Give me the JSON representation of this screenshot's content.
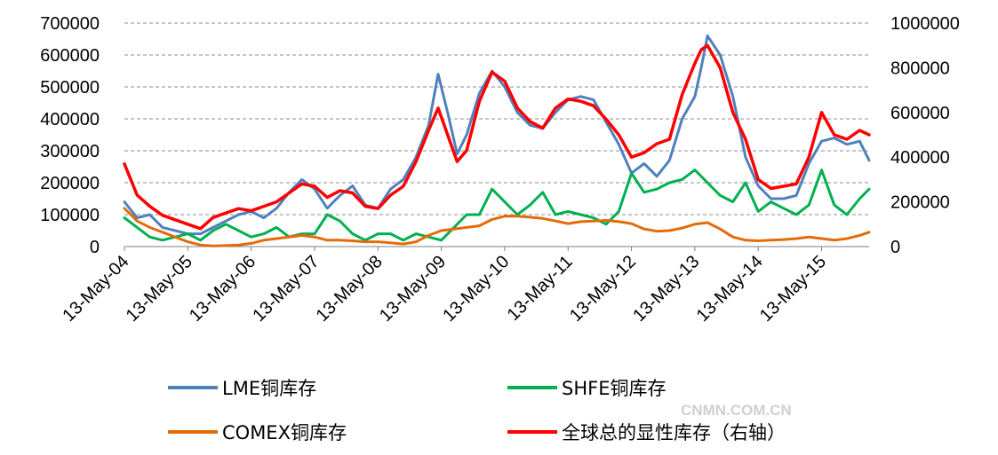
{
  "watermark": "CNMN.COM.CN",
  "chart_data": {
    "type": "line",
    "title": "",
    "y_left": {
      "ylim": [
        0,
        700000
      ],
      "ticks": [
        "0",
        "100000",
        "200000",
        "300000",
        "400000",
        "500000",
        "600000",
        "700000"
      ]
    },
    "y_right": {
      "ylim": [
        0,
        1000000
      ],
      "ticks": [
        "0",
        "200000",
        "400000",
        "600000",
        "800000",
        "1000000"
      ]
    },
    "x_range": [
      2004.0,
      2015.75
    ],
    "x_ticks": [
      "13-May-04",
      "13-May-05",
      "13-May-06",
      "13-May-07",
      "13-May-08",
      "13-May-09",
      "13-May-10",
      "13-May-11",
      "13-May-12",
      "13-May-13",
      "13-May-14",
      "13-May-15"
    ],
    "grid": "horizontal dashed",
    "legend_position": "bottom",
    "series": [
      {
        "name": "LME铜库存",
        "color": "#4f81bd",
        "axis": "left",
        "x": [
          2004.0,
          2004.2,
          2004.4,
          2004.6,
          2004.8,
          2005.0,
          2005.2,
          2005.4,
          2005.6,
          2005.8,
          2006.0,
          2006.2,
          2006.4,
          2006.6,
          2006.8,
          2007.0,
          2007.2,
          2007.4,
          2007.6,
          2007.8,
          2008.0,
          2008.2,
          2008.4,
          2008.6,
          2008.8,
          2008.95,
          2009.1,
          2009.25,
          2009.4,
          2009.6,
          2009.8,
          2010.0,
          2010.2,
          2010.4,
          2010.6,
          2010.8,
          2011.0,
          2011.2,
          2011.4,
          2011.6,
          2011.8,
          2012.0,
          2012.2,
          2012.4,
          2012.6,
          2012.8,
          2013.0,
          2013.1,
          2013.2,
          2013.4,
          2013.6,
          2013.8,
          2014.0,
          2014.2,
          2014.4,
          2014.6,
          2014.8,
          2015.0,
          2015.2,
          2015.4,
          2015.6,
          2015.75
        ],
        "values": [
          140000,
          90000,
          100000,
          60000,
          50000,
          40000,
          40000,
          60000,
          80000,
          100000,
          110000,
          90000,
          120000,
          170000,
          210000,
          180000,
          120000,
          160000,
          190000,
          130000,
          120000,
          180000,
          210000,
          280000,
          380000,
          540000,
          420000,
          290000,
          350000,
          480000,
          550000,
          500000,
          420000,
          380000,
          370000,
          420000,
          460000,
          470000,
          460000,
          390000,
          320000,
          230000,
          260000,
          220000,
          270000,
          400000,
          470000,
          560000,
          660000,
          600000,
          470000,
          280000,
          190000,
          150000,
          150000,
          160000,
          260000,
          330000,
          340000,
          320000,
          330000,
          270000
        ]
      },
      {
        "name": "SHFE铜库存",
        "color": "#00b050",
        "axis": "left",
        "x": [
          2004.0,
          2004.2,
          2004.4,
          2004.6,
          2004.8,
          2005.0,
          2005.2,
          2005.4,
          2005.6,
          2005.8,
          2006.0,
          2006.2,
          2006.4,
          2006.6,
          2006.8,
          2007.0,
          2007.2,
          2007.4,
          2007.6,
          2007.8,
          2008.0,
          2008.2,
          2008.4,
          2008.6,
          2008.8,
          2009.0,
          2009.2,
          2009.4,
          2009.6,
          2009.8,
          2010.0,
          2010.2,
          2010.4,
          2010.6,
          2010.8,
          2011.0,
          2011.2,
          2011.4,
          2011.6,
          2011.8,
          2012.0,
          2012.2,
          2012.4,
          2012.6,
          2012.8,
          2013.0,
          2013.2,
          2013.4,
          2013.6,
          2013.8,
          2014.0,
          2014.2,
          2014.4,
          2014.6,
          2014.8,
          2015.0,
          2015.2,
          2015.4,
          2015.6,
          2015.75
        ],
        "values": [
          90000,
          60000,
          30000,
          20000,
          30000,
          40000,
          20000,
          50000,
          70000,
          50000,
          30000,
          40000,
          60000,
          30000,
          40000,
          40000,
          100000,
          80000,
          40000,
          20000,
          40000,
          40000,
          20000,
          40000,
          30000,
          20000,
          60000,
          100000,
          100000,
          180000,
          140000,
          100000,
          130000,
          170000,
          100000,
          110000,
          100000,
          90000,
          70000,
          110000,
          230000,
          170000,
          180000,
          200000,
          210000,
          240000,
          200000,
          160000,
          140000,
          200000,
          110000,
          140000,
          120000,
          100000,
          130000,
          240000,
          130000,
          100000,
          150000,
          180000
        ]
      },
      {
        "name": "COMEX铜库存",
        "color": "#e36c09",
        "axis": "left",
        "x": [
          2004.0,
          2004.2,
          2004.4,
          2004.6,
          2004.8,
          2005.0,
          2005.2,
          2005.4,
          2005.6,
          2005.8,
          2006.0,
          2006.2,
          2006.4,
          2006.6,
          2006.8,
          2007.0,
          2007.2,
          2007.4,
          2007.6,
          2007.8,
          2008.0,
          2008.2,
          2008.4,
          2008.6,
          2008.8,
          2009.0,
          2009.2,
          2009.4,
          2009.6,
          2009.8,
          2010.0,
          2010.2,
          2010.4,
          2010.6,
          2010.8,
          2011.0,
          2011.2,
          2011.4,
          2011.6,
          2011.8,
          2012.0,
          2012.2,
          2012.4,
          2012.6,
          2012.8,
          2013.0,
          2013.2,
          2013.4,
          2013.6,
          2013.8,
          2014.0,
          2014.2,
          2014.4,
          2014.6,
          2014.8,
          2015.0,
          2015.2,
          2015.4,
          2015.6,
          2015.75
        ],
        "values": [
          120000,
          80000,
          60000,
          45000,
          30000,
          15000,
          5000,
          2000,
          3000,
          5000,
          10000,
          20000,
          25000,
          30000,
          35000,
          30000,
          20000,
          20000,
          18000,
          15000,
          15000,
          12000,
          8000,
          15000,
          35000,
          50000,
          55000,
          60000,
          65000,
          85000,
          95000,
          95000,
          92000,
          88000,
          80000,
          72000,
          78000,
          80000,
          82000,
          78000,
          72000,
          55000,
          48000,
          50000,
          58000,
          70000,
          75000,
          55000,
          30000,
          20000,
          18000,
          20000,
          22000,
          25000,
          30000,
          25000,
          20000,
          25000,
          35000,
          45000
        ]
      },
      {
        "name": "全球总的显性库存（右轴）",
        "color": "#ff0000",
        "axis": "right",
        "x": [
          2004.0,
          2004.2,
          2004.4,
          2004.6,
          2004.8,
          2005.0,
          2005.2,
          2005.4,
          2005.6,
          2005.8,
          2006.0,
          2006.2,
          2006.4,
          2006.6,
          2006.8,
          2007.0,
          2007.2,
          2007.4,
          2007.6,
          2007.8,
          2008.0,
          2008.2,
          2008.4,
          2008.6,
          2008.8,
          2008.95,
          2009.1,
          2009.25,
          2009.4,
          2009.6,
          2009.8,
          2010.0,
          2010.2,
          2010.4,
          2010.6,
          2010.8,
          2011.0,
          2011.2,
          2011.4,
          2011.6,
          2011.8,
          2012.0,
          2012.2,
          2012.4,
          2012.6,
          2012.8,
          2013.0,
          2013.1,
          2013.2,
          2013.4,
          2013.6,
          2013.8,
          2014.0,
          2014.2,
          2014.4,
          2014.6,
          2014.8,
          2015.0,
          2015.2,
          2015.4,
          2015.6,
          2015.75
        ],
        "values": [
          370000,
          230000,
          180000,
          140000,
          120000,
          100000,
          80000,
          130000,
          150000,
          170000,
          160000,
          180000,
          200000,
          240000,
          280000,
          270000,
          220000,
          250000,
          240000,
          180000,
          170000,
          230000,
          270000,
          380000,
          520000,
          620000,
          500000,
          380000,
          430000,
          650000,
          780000,
          740000,
          620000,
          560000,
          530000,
          620000,
          660000,
          650000,
          630000,
          570000,
          500000,
          400000,
          420000,
          460000,
          480000,
          680000,
          820000,
          880000,
          900000,
          800000,
          600000,
          480000,
          300000,
          260000,
          270000,
          280000,
          400000,
          600000,
          500000,
          480000,
          520000,
          500000
        ]
      }
    ]
  }
}
